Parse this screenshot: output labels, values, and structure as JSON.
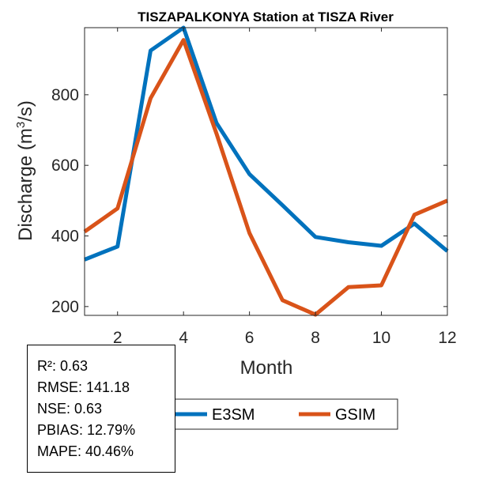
{
  "chart_data": {
    "type": "line",
    "title": "TISZAPALKONYA  Station at  TISZA  River",
    "xlabel": "Month",
    "ylabel_main": "Discharge (m",
    "ylabel_sup": "3",
    "ylabel_tail": "/s)",
    "xlim": [
      1,
      12
    ],
    "ylim": [
      175,
      990
    ],
    "xticks": [
      2,
      4,
      6,
      8,
      10,
      12
    ],
    "yticks": [
      200,
      400,
      600,
      800
    ],
    "x": [
      1,
      2,
      3,
      4,
      5,
      6,
      7,
      8,
      9,
      10,
      11,
      12
    ],
    "series": [
      {
        "name": "E3SM",
        "color": "#0072BD",
        "values": [
          333,
          370,
          925,
          990,
          720,
          575,
          487,
          397,
          382,
          372,
          435,
          357
        ]
      },
      {
        "name": "GSIM",
        "color": "#D95319",
        "values": [
          412,
          478,
          790,
          955,
          690,
          408,
          218,
          177,
          255,
          260,
          460,
          500
        ]
      }
    ],
    "legend_position": "bottom-center"
  },
  "stats": [
    "R²: 0.63",
    "RMSE: 141.18",
    "NSE: 0.63",
    "PBIAS: 12.79%",
    "MAPE: 40.46%"
  ]
}
